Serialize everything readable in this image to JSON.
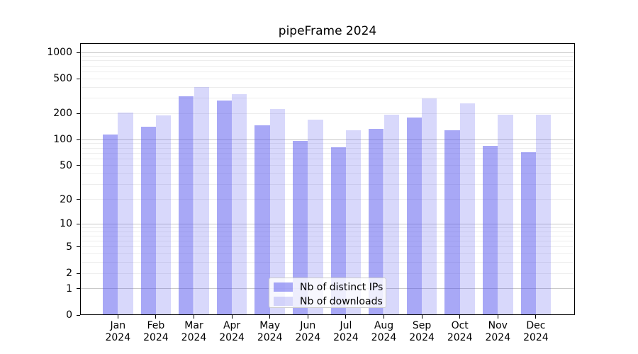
{
  "title": "pipeFrame 2024",
  "chart_data": {
    "type": "bar",
    "title": "pipeFrame 2024",
    "categories": [
      "Jan",
      "Feb",
      "Mar",
      "Apr",
      "May",
      "Jun",
      "Jul",
      "Aug",
      "Sep",
      "Oct",
      "Nov",
      "Dec"
    ],
    "category_year": "2024",
    "series": [
      {
        "name": "Nb of distinct IPs",
        "color": "rgba(85,85,238,0.51)",
        "values": [
          115,
          140,
          315,
          280,
          145,
          97,
          82,
          133,
          178,
          128,
          85,
          72
        ]
      },
      {
        "name": "Nb of downloads",
        "color": "rgba(85,85,238,0.23)",
        "values": [
          205,
          190,
          400,
          330,
          225,
          170,
          127,
          195,
          295,
          263,
          195,
          195
        ]
      }
    ],
    "xlabel": "",
    "ylabel": "",
    "yscale": "log10(1+y)",
    "ylim": [
      0,
      1230
    ],
    "yticks": [
      0,
      1,
      2,
      5,
      10,
      20,
      50,
      100,
      200,
      500,
      1000
    ],
    "grid": {
      "enabled": true,
      "major_ticks": [
        1,
        10,
        100,
        1000
      ],
      "major_color": "#c9c9c9",
      "minor_color": "#ededed"
    },
    "legend": {
      "position": "lower-center-inside",
      "items": [
        "Nb of distinct IPs",
        "Nb of downloads"
      ]
    }
  }
}
